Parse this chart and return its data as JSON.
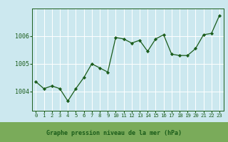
{
  "x": [
    0,
    1,
    2,
    3,
    4,
    5,
    6,
    7,
    8,
    9,
    10,
    11,
    12,
    13,
    14,
    15,
    16,
    17,
    18,
    19,
    20,
    21,
    22,
    23
  ],
  "y": [
    1004.35,
    1004.1,
    1004.2,
    1004.1,
    1003.65,
    1004.1,
    1004.5,
    1005.0,
    1004.85,
    1004.7,
    1005.95,
    1005.9,
    1005.75,
    1005.85,
    1005.45,
    1005.9,
    1006.05,
    1005.35,
    1005.3,
    1005.3,
    1005.55,
    1006.05,
    1006.1,
    1006.75
  ],
  "line_color": "#1a5c1a",
  "marker_color": "#1a5c1a",
  "bg_color": "#cce8ef",
  "grid_color": "#ffffff",
  "tick_label_color": "#1a5c1a",
  "xlabel": "Graphe pression niveau de la mer (hPa)",
  "xlabel_color": "#1a5c1a",
  "yticks": [
    1004,
    1005,
    1006
  ],
  "ylim": [
    1003.3,
    1007.0
  ],
  "xlim": [
    -0.5,
    23.5
  ],
  "spine_color": "#1a5c1a",
  "bottom_bar_color": "#7aab5a",
  "xlabel_fontsize": 6.0,
  "ytick_fontsize": 6.0,
  "xtick_fontsize": 5.2
}
